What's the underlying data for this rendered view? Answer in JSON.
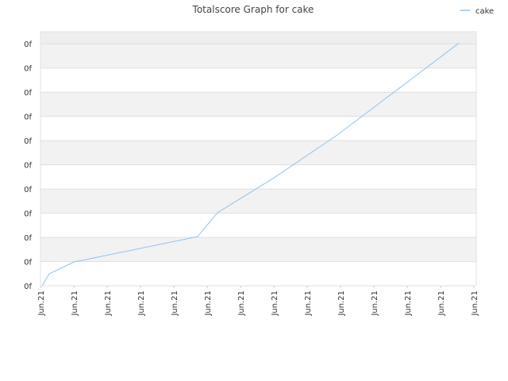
{
  "chart_data": {
    "type": "line",
    "title": "Totalscore Graph for cake",
    "x_tick_note": null,
    "xlim": [
      0,
      13.07
    ],
    "ylim": [
      0,
      10.5
    ],
    "xticks": [
      {
        "value": 0,
        "label": "Jun.21"
      },
      {
        "value": 1,
        "label": "Jun.21"
      },
      {
        "value": 2,
        "label": "Jun.21"
      },
      {
        "value": 3,
        "label": "Jun.21"
      },
      {
        "value": 4,
        "label": "Jun.21"
      },
      {
        "value": 5,
        "label": "Jun.21"
      },
      {
        "value": 6,
        "label": "Jun.21"
      },
      {
        "value": 7,
        "label": "Jun.21"
      },
      {
        "value": 8,
        "label": "Jun.21"
      },
      {
        "value": 9,
        "label": "Jun.21"
      },
      {
        "value": 10,
        "label": "Jun.21"
      },
      {
        "value": 11,
        "label": "Jun.21"
      },
      {
        "value": 12,
        "label": "Jun.21"
      },
      {
        "value": 13,
        "label": "Jun.21"
      }
    ],
    "yticks": [
      {
        "value": 0,
        "label": "0f"
      },
      {
        "value": 1,
        "label": "0f"
      },
      {
        "value": 2,
        "label": "0f"
      },
      {
        "value": 3,
        "label": "0f"
      },
      {
        "value": 4,
        "label": "0f"
      },
      {
        "value": 5,
        "label": "0f"
      },
      {
        "value": 6,
        "label": "0f"
      },
      {
        "value": 7,
        "label": "0f"
      },
      {
        "value": 8,
        "label": "0f"
      },
      {
        "value": 9,
        "label": "0f"
      },
      {
        "value": 10,
        "label": "0f"
      }
    ],
    "grid": true,
    "legend": "top-right",
    "series": [
      {
        "name": "cake",
        "color": "#90c4f0",
        "x": [
          0.05,
          0.26,
          1.0,
          4.71,
          5.31,
          7.0,
          8.9,
          12.55
        ],
        "values": [
          0,
          0.49,
          0.98,
          2.03,
          3.02,
          4.46,
          6.23,
          10.03
        ]
      }
    ]
  }
}
